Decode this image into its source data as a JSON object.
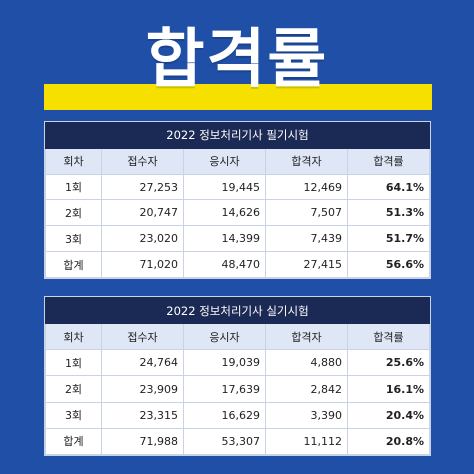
{
  "page": {
    "title": "합격률"
  },
  "written": {
    "caption": "2022 정보처리기사 필기시험",
    "headers": [
      "회차",
      "접수자",
      "응시자",
      "합격자",
      "합격률"
    ],
    "rows": [
      [
        "1회",
        "27,253",
        "19,445",
        "12,469",
        "64.1%"
      ],
      [
        "2회",
        "20,747",
        "14,626",
        "7,507",
        "51.3%"
      ],
      [
        "3회",
        "23,020",
        "14,399",
        "7,439",
        "51.7%"
      ],
      [
        "합계",
        "71,020",
        "48,470",
        "27,415",
        "56.6%"
      ]
    ]
  },
  "practical": {
    "caption": "2022 정보처리기사 실기시험",
    "headers": [
      "회차",
      "접수자",
      "응시자",
      "합격자",
      "합격률"
    ],
    "rows": [
      [
        "1회",
        "24,764",
        "19,039",
        "4,880",
        "25.6%"
      ],
      [
        "2회",
        "23,909",
        "17,639",
        "2,842",
        "16.1%"
      ],
      [
        "3회",
        "23,315",
        "16,629",
        "3,390",
        "20.4%"
      ],
      [
        "합계",
        "71,988",
        "53,307",
        "11,112",
        "20.8%"
      ]
    ]
  },
  "colors": {
    "background": "#1f4fa6",
    "highlight": "#f5e000",
    "table_caption": "#1b2a55",
    "header_row": "#dfe7f6"
  }
}
